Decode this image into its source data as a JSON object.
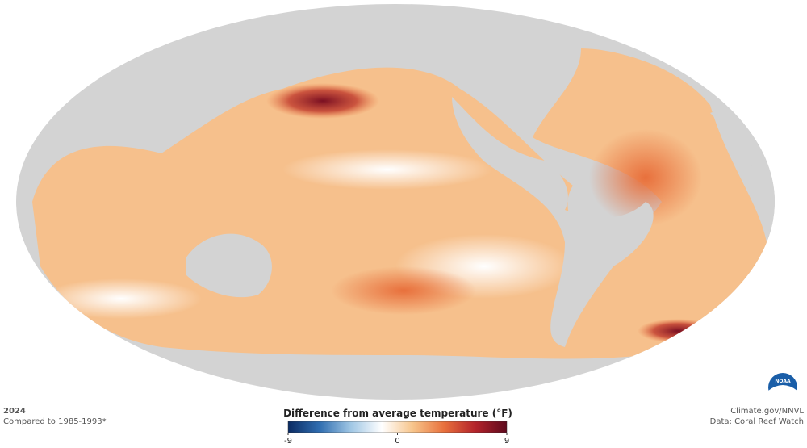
{
  "header": {
    "year": "2024",
    "baseline": "Compared to 1985-1993*"
  },
  "credits": {
    "source": "Climate.gov/NNVL",
    "data": "Data: Coral Reef Watch",
    "logo": "NOAA"
  },
  "colorbar": {
    "title": "Difference from average temperature (°F)",
    "lim": [
      -9,
      9
    ],
    "ticks": [
      -9,
      0,
      9
    ],
    "colors": [
      "#0b2b63",
      "#2f6db0",
      "#9fc6e4",
      "#ffffff",
      "#f7c48a",
      "#e8703c",
      "#b3232b",
      "#5e0a1e"
    ]
  }
}
